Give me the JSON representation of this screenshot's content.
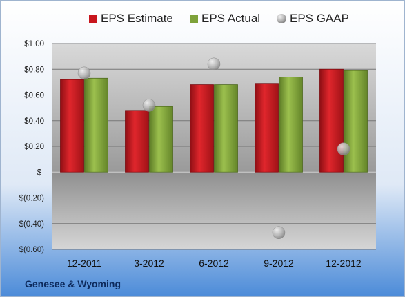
{
  "company": "Genesee & Wyoming",
  "colors": {
    "estimate": "#c8161d",
    "actual": "#7ea23a",
    "gaap": "#a9a9a9",
    "background_top": "#ffffff",
    "background_bottom": "#4a8ad8"
  },
  "chart_data": {
    "type": "bar",
    "title": "",
    "xlabel": "",
    "ylabel": "",
    "categories": [
      "12-2011",
      "3-2012",
      "6-2012",
      "9-2012",
      "12-2012"
    ],
    "series": [
      {
        "name": "EPS Estimate",
        "kind": "bar",
        "values": [
          0.72,
          0.48,
          0.68,
          0.69,
          0.8
        ]
      },
      {
        "name": "EPS Actual",
        "kind": "bar",
        "values": [
          0.73,
          0.51,
          0.68,
          0.74,
          0.79
        ]
      },
      {
        "name": "EPS GAAP",
        "kind": "marker",
        "values": [
          0.77,
          0.52,
          0.84,
          -0.47,
          0.18
        ]
      }
    ],
    "ylim": [
      -0.6,
      1.0
    ],
    "yticks": [
      1.0,
      0.8,
      0.6,
      0.4,
      0.2,
      0,
      -0.2,
      -0.4,
      -0.6
    ],
    "ytick_labels": [
      "$1.00",
      "$0.80",
      "$0.60",
      "$0.40",
      "$0.20",
      "$-",
      "$(0.20)",
      "$(0.40)",
      "$(0.60)"
    ],
    "grid": true,
    "legend_position": "top"
  }
}
